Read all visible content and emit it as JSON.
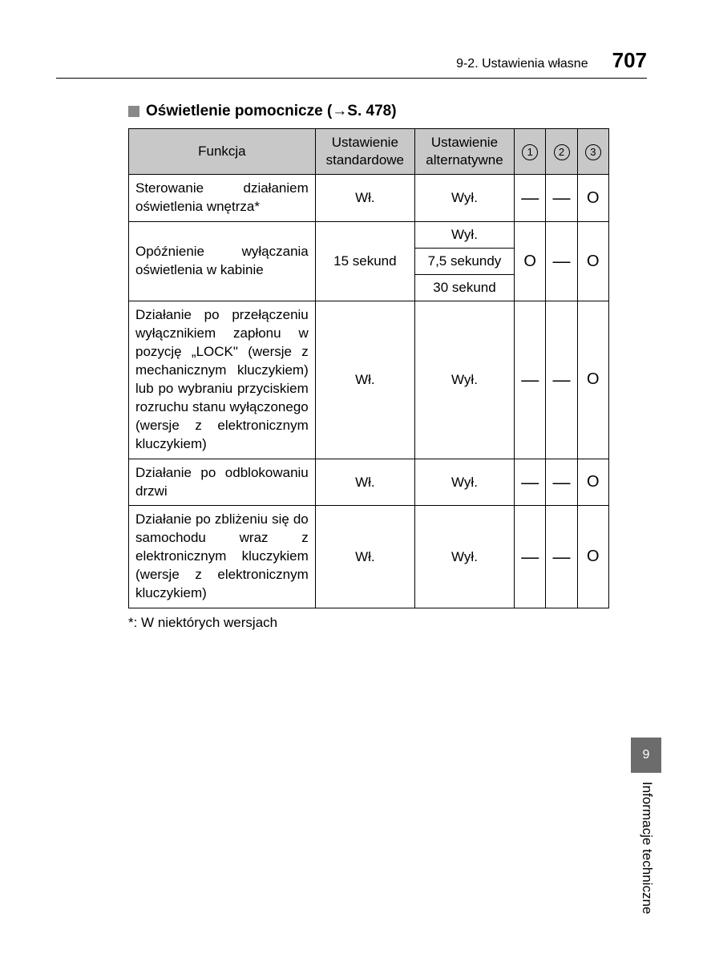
{
  "header": {
    "breadcrumb": "9-2. Ustawienia własne",
    "page_number": "707"
  },
  "section": {
    "title": "Oświetlenie pomocnicze (→S. 478)"
  },
  "table": {
    "columns": {
      "function": "Funkcja",
      "standard": "Ustawienie standardowe",
      "alternative": "Ustawienie alternatywne",
      "n1": "1",
      "n2": "2",
      "n3": "3"
    },
    "rows": [
      {
        "func": "Sterowanie działaniem oświetlenia wnętrza*",
        "std": "Wł.",
        "alt": [
          "Wył."
        ],
        "v": [
          "—",
          "—",
          "O"
        ]
      },
      {
        "func": "Opóźnienie wyłączania oświetlenia w kabinie",
        "std": "15 sekund",
        "alt": [
          "Wył.",
          "7,5 sekundy",
          "30 sekund"
        ],
        "v": [
          "O",
          "—",
          "O"
        ]
      },
      {
        "func": "Działanie po przełączeniu wyłącznikiem zapłonu w pozycję „LOCK\" (wersje z mechanicznym kluczykiem) lub po wybraniu przyciskiem rozruchu stanu wyłączonego (wersje z elektronicznym kluczykiem)",
        "std": "Wł.",
        "alt": [
          "Wył."
        ],
        "v": [
          "—",
          "—",
          "O"
        ]
      },
      {
        "func": "Działanie po odblokowaniu drzwi",
        "std": "Wł.",
        "alt": [
          "Wył."
        ],
        "v": [
          "—",
          "—",
          "O"
        ]
      },
      {
        "func": "Działanie po zbliżeniu się do samochodu wraz z elektronicznym kluczykiem (wersje z elektronicznym kluczykiem)",
        "std": "Wł.",
        "alt": [
          "Wył."
        ],
        "v": [
          "—",
          "—",
          "O"
        ]
      }
    ]
  },
  "footnote": "*: W niektórych wersjach",
  "side_tab": {
    "chapter": "9",
    "label": "Informacje techniczne"
  },
  "tokens": {
    "dash": "—",
    "circle": "O"
  },
  "colors": {
    "header_bg": "#c8c8c8",
    "bullet": "#888888",
    "tab_bg": "#6c6c6c",
    "tab_fg": "#ffffff",
    "text": "#000000",
    "page_bg": "#ffffff"
  },
  "typography": {
    "body_pt": 17,
    "title_pt": 19,
    "page_number_pt": 26
  }
}
